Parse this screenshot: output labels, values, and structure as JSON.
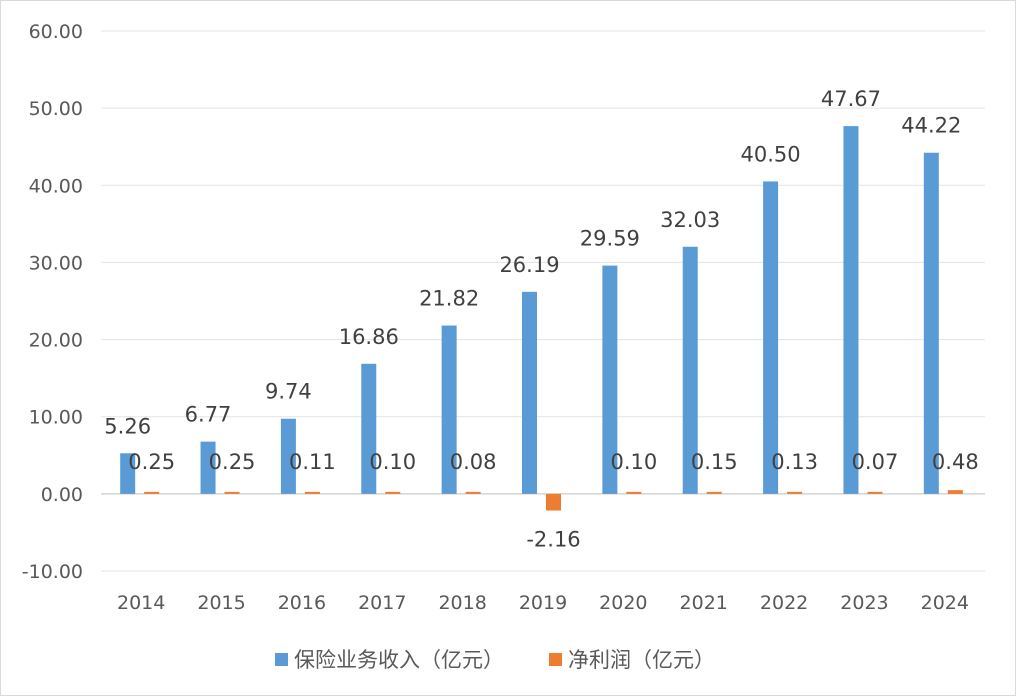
{
  "chart_data": {
    "type": "bar",
    "categories": [
      "2014",
      "2015",
      "2016",
      "2017",
      "2018",
      "2019",
      "2020",
      "2021",
      "2022",
      "2023",
      "2024"
    ],
    "series": [
      {
        "name": "保险业务收入（亿元）",
        "values": [
          5.26,
          6.77,
          9.74,
          16.86,
          21.82,
          26.19,
          29.59,
          32.03,
          40.5,
          47.67,
          44.22
        ],
        "labels": [
          "5.26",
          "6.77",
          "9.74",
          "16.86",
          "21.82",
          "26.19",
          "29.59",
          "32.03",
          "40.50",
          "47.67",
          "44.22"
        ],
        "color": "#5B9BD5"
      },
      {
        "name": "净利润（亿元）",
        "values": [
          0.25,
          0.25,
          0.11,
          0.1,
          0.08,
          -2.16,
          0.1,
          0.15,
          0.13,
          0.07,
          0.48
        ],
        "labels": [
          "0.25",
          "0.25",
          "0.11",
          "0.10",
          "0.08",
          "-2.16",
          "0.10",
          "0.15",
          "0.13",
          "0.07",
          "0.48"
        ],
        "color": "#ED7D31"
      }
    ],
    "ylim": [
      -10,
      60
    ],
    "yticks": [
      "-10.00",
      "0.00",
      "10.00",
      "20.00",
      "30.00",
      "40.00",
      "50.00",
      "60.00"
    ],
    "grid": true,
    "legend": "bottom"
  }
}
